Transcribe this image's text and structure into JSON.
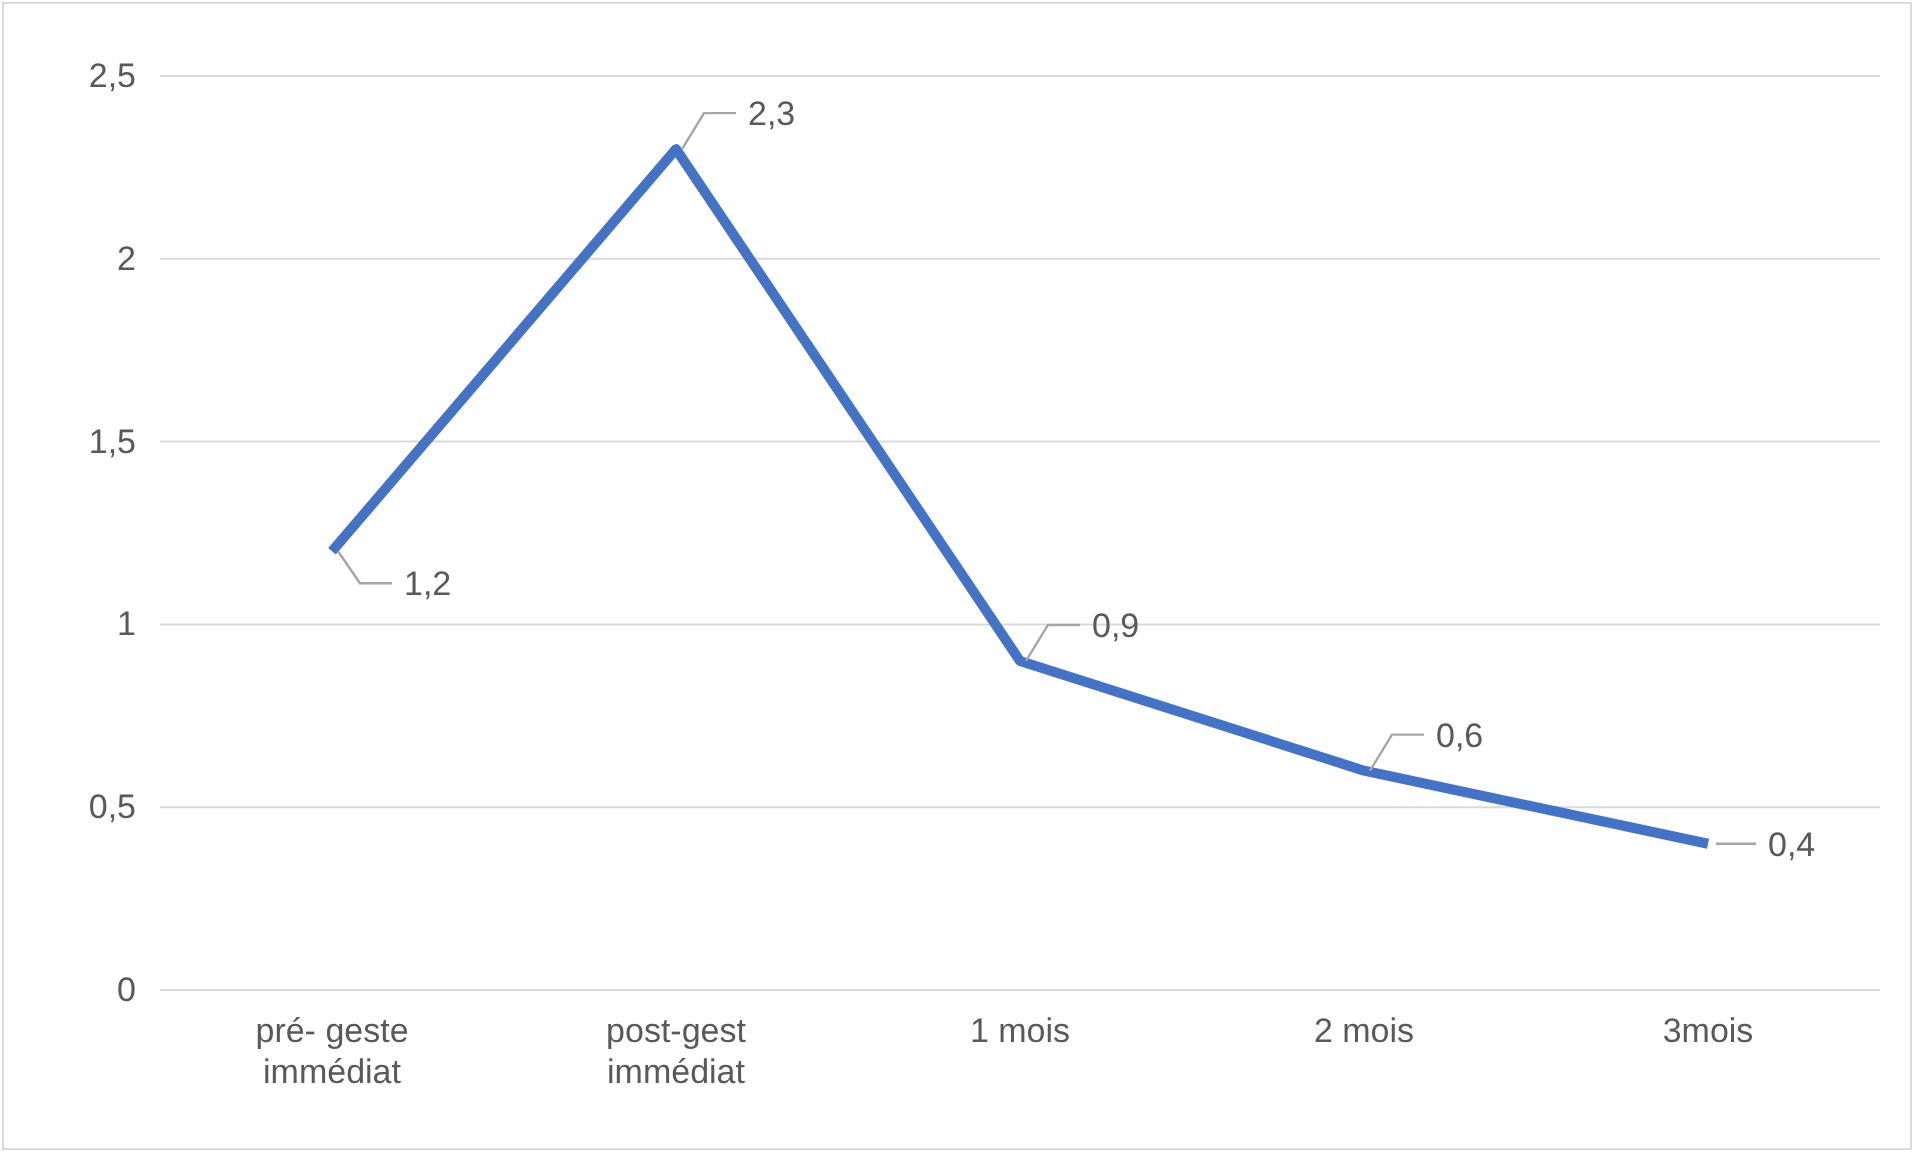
{
  "chart_data": {
    "type": "line",
    "categories": [
      "pré- geste immédiat",
      "post-gest immédiat",
      "1 mois",
      "2 mois",
      "3mois"
    ],
    "series": [
      {
        "color": "#4472c4",
        "values": [
          1.2,
          2.3,
          0.9,
          0.6,
          0.4
        ]
      }
    ],
    "value_labels": [
      "1,2",
      "2,3",
      "0,9",
      "0,6",
      "0,4"
    ],
    "ylim": [
      0,
      2.5
    ],
    "yticks": [
      0,
      {
        "value": 0.5,
        "label": "0,5"
      },
      1,
      {
        "value": 1.5,
        "label": "1,5"
      },
      2,
      {
        "value": 2.5,
        "label": "2,5"
      }
    ],
    "grid": "y",
    "marker": "none",
    "line_style": "solid"
  }
}
